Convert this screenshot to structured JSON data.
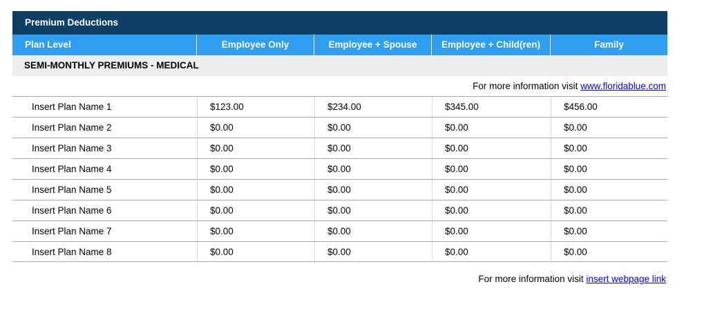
{
  "title": "Premium Deductions",
  "columns": [
    "Plan Level",
    "Employee Only",
    "Employee + Spouse",
    "Employee + Child(ren)",
    "Family"
  ],
  "section_header": "SEMI-MONTHLY PREMIUMS - MEDICAL",
  "info_top": {
    "prefix": "For more information visit ",
    "link": "www.floridablue.com"
  },
  "info_bottom": {
    "prefix": "For more information visit ",
    "link": "insert webpage link"
  },
  "rows": [
    [
      "Insert Plan Name 1",
      "$123.00",
      "$234.00",
      "$345.00",
      "$456.00"
    ],
    [
      "Insert Plan Name 2",
      "$0.00",
      "$0.00",
      "$0.00",
      "$0.00"
    ],
    [
      "Insert Plan Name 3",
      "$0.00",
      "$0.00",
      "$0.00",
      "$0.00"
    ],
    [
      "Insert Plan Name 4",
      "$0.00",
      "$0.00",
      "$0.00",
      "$0.00"
    ],
    [
      "Insert Plan Name 5",
      "$0.00",
      "$0.00",
      "$0.00",
      "$0.00"
    ],
    [
      "Insert Plan Name 6",
      "$0.00",
      "$0.00",
      "$0.00",
      "$0.00"
    ],
    [
      "Insert Plan Name 7",
      "$0.00",
      "$0.00",
      "$0.00",
      "$0.00"
    ],
    [
      "Insert Plan Name 8",
      "$0.00",
      "$0.00",
      "$0.00",
      "$0.00"
    ]
  ],
  "colors": {
    "navy": "#0e4065",
    "blue": "#2e9ef0",
    "band": "#eeeeee",
    "rowline": "#a6a6a6",
    "colline": "#d9d9d9",
    "link": "#0000ee",
    "text": "#000000"
  }
}
